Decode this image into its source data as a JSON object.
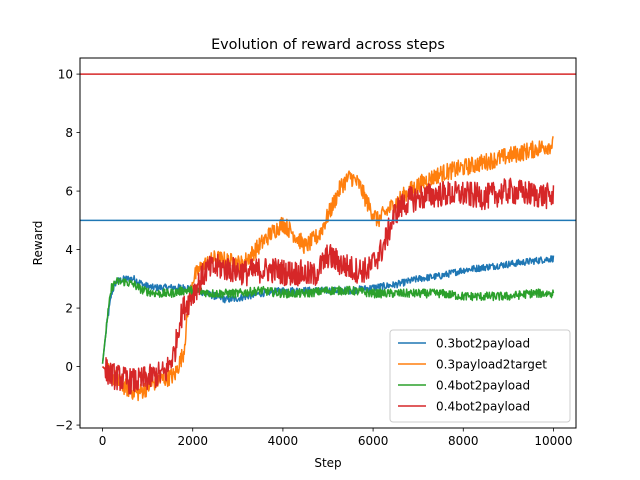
{
  "chart_data": {
    "type": "line",
    "title": "Evolution of reward across steps",
    "xlabel": "Step",
    "ylabel": "Reward",
    "xlim": [
      -500,
      10500
    ],
    "ylim": [
      -2.1,
      10.55
    ],
    "xticks": [
      0,
      2000,
      4000,
      6000,
      8000,
      10000
    ],
    "yticks": [
      -2,
      0,
      2,
      4,
      6,
      8,
      10
    ],
    "xtick_labels": [
      "0",
      "2000",
      "4000",
      "6000",
      "8000",
      "10000"
    ],
    "ytick_labels": [
      "−2",
      "0",
      "2",
      "4",
      "6",
      "8",
      "10"
    ],
    "grid": false,
    "legend_position": "lower right",
    "hlines": [
      {
        "y": 5,
        "color": "#1f77b4"
      },
      {
        "y": 10,
        "color": "#d62728"
      }
    ],
    "series": [
      {
        "name": "0.3bot2payload",
        "color": "#1f77b4",
        "noise": 0.12,
        "x": [
          0,
          100,
          200,
          300,
          500,
          700,
          900,
          1100,
          1300,
          1500,
          1700,
          1900,
          2100,
          2300,
          2500,
          2700,
          2900,
          3200,
          3500,
          4000,
          4500,
          5000,
          5500,
          6000,
          6500,
          7000,
          7500,
          8000,
          8500,
          9000,
          9500,
          10000
        ],
        "y": [
          0.1,
          1.5,
          2.5,
          2.9,
          3.0,
          3.0,
          2.8,
          2.7,
          2.7,
          2.7,
          2.7,
          2.7,
          2.6,
          2.5,
          2.4,
          2.3,
          2.3,
          2.4,
          2.5,
          2.6,
          2.6,
          2.6,
          2.6,
          2.7,
          2.8,
          3.0,
          3.1,
          3.3,
          3.4,
          3.5,
          3.6,
          3.7
        ]
      },
      {
        "name": "0.3payload2target",
        "color": "#ff7f0e",
        "noise": 0.3,
        "x": [
          0,
          200,
          400,
          600,
          800,
          1000,
          1200,
          1400,
          1600,
          1800,
          1900,
          2000,
          2200,
          2500,
          2800,
          3100,
          3400,
          3700,
          4000,
          4200,
          4500,
          4800,
          5100,
          5300,
          5500,
          5700,
          5900,
          6100,
          6300,
          6500,
          6800,
          7100,
          7500,
          8000,
          8500,
          9000,
          9500,
          10000
        ],
        "y": [
          0.0,
          -0.3,
          -0.6,
          -0.8,
          -0.9,
          -0.7,
          -0.5,
          -0.4,
          -0.3,
          0.5,
          2.0,
          3.0,
          3.4,
          3.7,
          3.6,
          3.5,
          4.0,
          4.5,
          4.9,
          4.6,
          4.1,
          4.5,
          5.5,
          6.2,
          6.5,
          6.2,
          5.5,
          5.0,
          5.3,
          5.6,
          6.0,
          6.3,
          6.6,
          6.8,
          7.0,
          7.2,
          7.4,
          7.6
        ]
      },
      {
        "name": "0.4bot2payload",
        "color": "#2ca02c",
        "noise": 0.15,
        "x": [
          0,
          100,
          200,
          300,
          500,
          700,
          900,
          1200,
          1500,
          1800,
          2100,
          2400,
          2700,
          3000,
          3500,
          4000,
          4500,
          5000,
          5500,
          6000,
          6500,
          7000,
          7500,
          8000,
          8500,
          9000,
          9500,
          10000
        ],
        "y": [
          0.1,
          1.6,
          2.7,
          2.9,
          2.9,
          2.8,
          2.6,
          2.5,
          2.5,
          2.6,
          2.6,
          2.5,
          2.5,
          2.5,
          2.6,
          2.5,
          2.5,
          2.6,
          2.6,
          2.5,
          2.5,
          2.5,
          2.5,
          2.4,
          2.4,
          2.4,
          2.5,
          2.5
        ]
      },
      {
        "name": "0.4bot2payload",
        "color": "#d62728",
        "noise": 0.45,
        "x": [
          0,
          200,
          400,
          600,
          800,
          1000,
          1200,
          1400,
          1600,
          1700,
          1800,
          1900,
          2000,
          2300,
          2600,
          2900,
          3200,
          3500,
          3800,
          4100,
          4400,
          4700,
          5000,
          5300,
          5600,
          5900,
          6200,
          6500,
          6800,
          7100,
          7500,
          8000,
          8500,
          9000,
          9500,
          10000
        ],
        "y": [
          0.0,
          -0.3,
          -0.4,
          -0.5,
          -0.5,
          -0.4,
          -0.3,
          -0.2,
          0.5,
          1.5,
          2.0,
          2.2,
          2.5,
          3.3,
          3.4,
          3.3,
          3.2,
          3.3,
          3.3,
          3.2,
          3.2,
          3.1,
          3.8,
          3.5,
          3.3,
          3.3,
          4.0,
          5.3,
          5.7,
          5.8,
          5.9,
          5.9,
          5.8,
          6.0,
          5.9,
          5.8
        ]
      }
    ]
  }
}
